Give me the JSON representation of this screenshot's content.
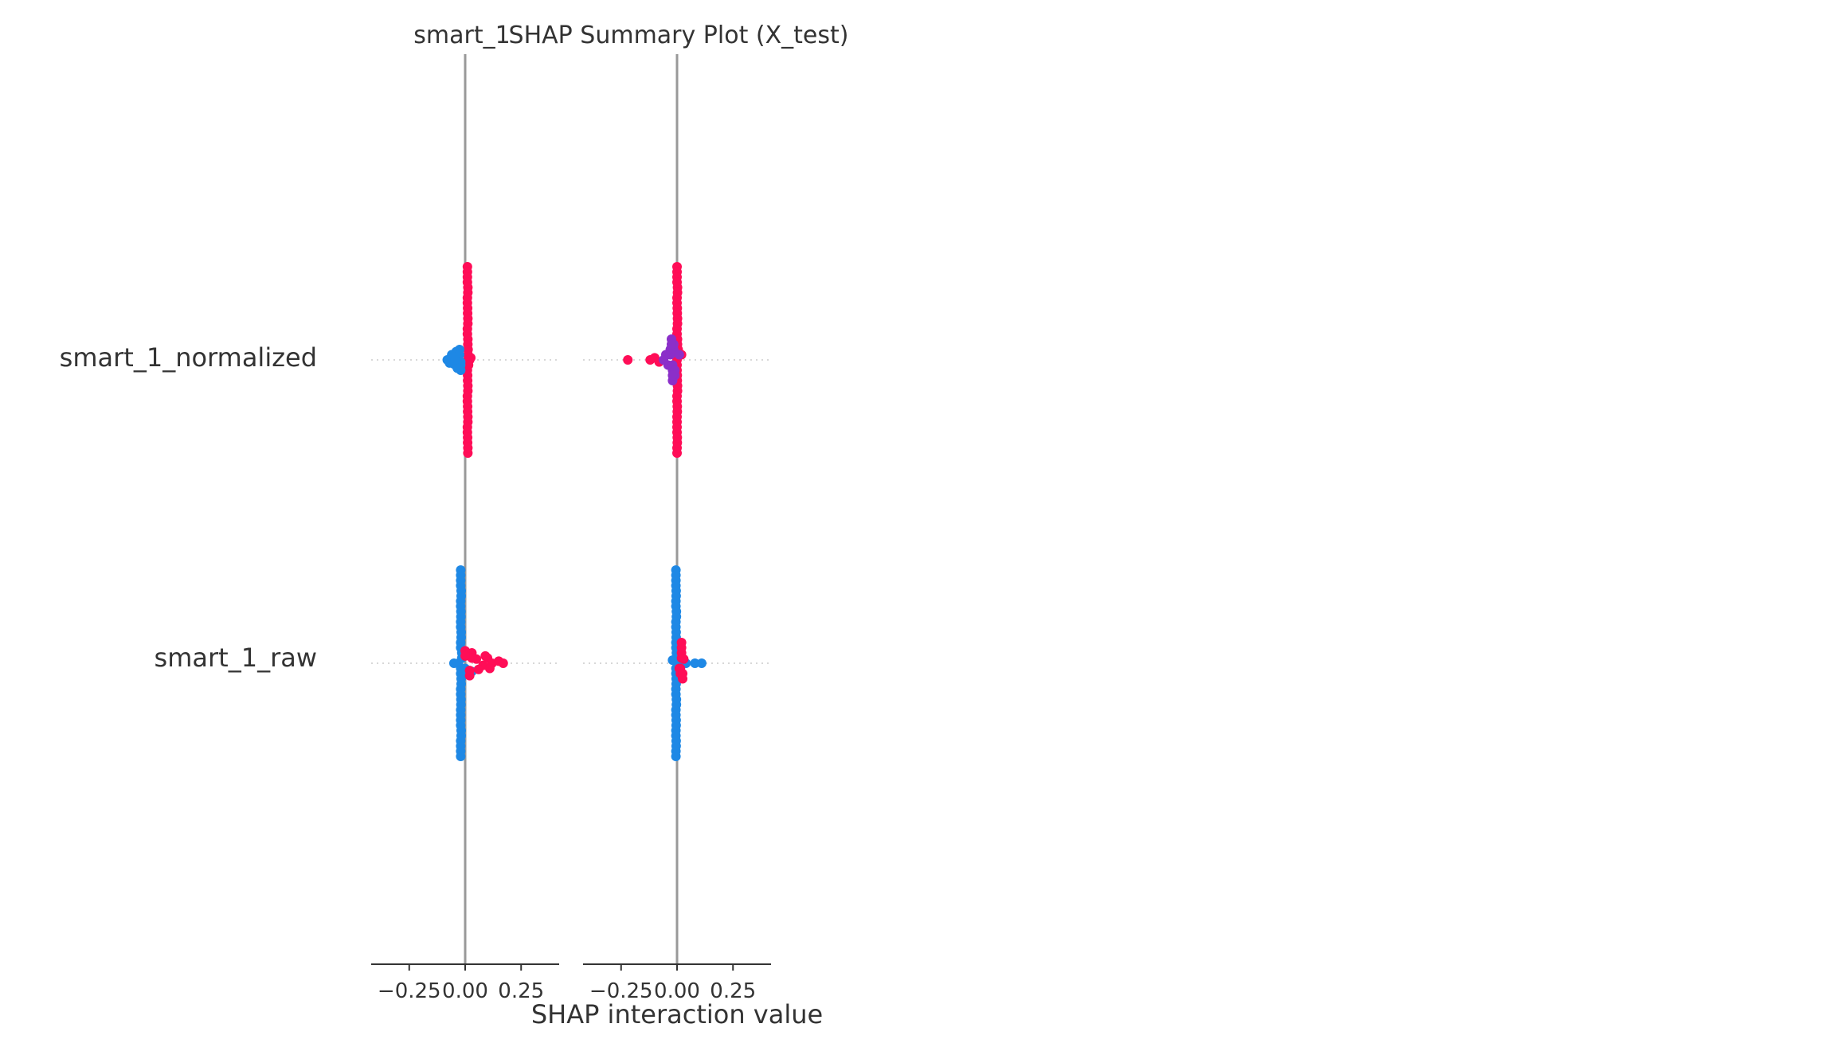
{
  "chart_data": {
    "type": "scatter",
    "title_left": "smart_1",
    "title_main": "SHAP Summary Plot (X_test)",
    "xlabel": "SHAP interaction value",
    "features": [
      "smart_1_normalized",
      "smart_1_raw"
    ],
    "panels": [
      {
        "name": "smart_1",
        "xlim": [
          -0.42,
          0.42
        ],
        "xticks": [
          -0.25,
          0.0,
          0.25
        ]
      },
      {
        "name": "smart_1_right",
        "xlim": [
          -0.42,
          0.42
        ],
        "xticks": [
          -0.25,
          0.0,
          0.25
        ]
      }
    ],
    "tick_labels": [
      "−0.25",
      "0.00",
      "0.25"
    ],
    "colors": {
      "high": "#ff0d57",
      "low": "#1e88e5",
      "axis": "#999999",
      "text": "#333333"
    },
    "clusters": [
      {
        "panel": 0,
        "feature": 0,
        "color": "high",
        "points": [
          [
            0.01,
            0.9
          ],
          [
            0.01,
            0.8
          ],
          [
            0.012,
            0.7
          ],
          [
            0.01,
            0.6
          ],
          [
            0.011,
            0.5
          ],
          [
            0.012,
            0.4
          ],
          [
            0.01,
            0.3
          ],
          [
            0.012,
            0.2
          ],
          [
            0.013,
            0.1
          ],
          [
            0.012,
            0.0
          ],
          [
            0.01,
            -0.1
          ],
          [
            0.011,
            -0.2
          ],
          [
            0.012,
            -0.3
          ],
          [
            0.01,
            -0.4
          ],
          [
            0.011,
            -0.5
          ],
          [
            0.012,
            -0.6
          ],
          [
            0.01,
            -0.7
          ],
          [
            0.011,
            -0.8
          ],
          [
            0.012,
            -0.9
          ],
          [
            0.02,
            0.0
          ],
          [
            0.025,
            0.02
          ],
          [
            0.015,
            -0.05
          ]
        ]
      },
      {
        "panel": 0,
        "feature": 0,
        "color": "low",
        "points": [
          [
            -0.08,
            0.0
          ],
          [
            -0.06,
            0.05
          ],
          [
            -0.05,
            -0.04
          ],
          [
            -0.04,
            0.08
          ],
          [
            -0.035,
            -0.08
          ],
          [
            -0.03,
            0.02
          ],
          [
            -0.02,
            -0.02
          ],
          [
            -0.07,
            -0.03
          ],
          [
            -0.05,
            0.03
          ],
          [
            -0.025,
            0.1
          ],
          [
            -0.02,
            -0.1
          ],
          [
            -0.045,
            0.0
          ]
        ]
      },
      {
        "panel": 0,
        "feature": 1,
        "color": "low",
        "points": [
          [
            -0.02,
            0.9
          ],
          [
            -0.02,
            0.8
          ],
          [
            -0.018,
            0.7
          ],
          [
            -0.02,
            0.6
          ],
          [
            -0.019,
            0.5
          ],
          [
            -0.02,
            0.4
          ],
          [
            -0.018,
            0.3
          ],
          [
            -0.02,
            0.2
          ],
          [
            -0.015,
            0.1
          ],
          [
            -0.03,
            0.0
          ],
          [
            -0.05,
            0.0
          ],
          [
            -0.02,
            -0.1
          ],
          [
            -0.018,
            -0.2
          ],
          [
            -0.02,
            -0.3
          ],
          [
            -0.019,
            -0.4
          ],
          [
            -0.02,
            -0.5
          ],
          [
            -0.02,
            -0.6
          ],
          [
            -0.018,
            -0.7
          ],
          [
            -0.02,
            -0.8
          ],
          [
            -0.02,
            -0.9
          ],
          [
            0.01,
            0.08
          ],
          [
            0.0,
            -0.05
          ],
          [
            0.03,
            -0.08
          ]
        ]
      },
      {
        "panel": 0,
        "feature": 1,
        "color": "high",
        "points": [
          [
            0.05,
            0.04
          ],
          [
            0.08,
            -0.02
          ],
          [
            0.1,
            0.05
          ],
          [
            0.12,
            0.0
          ],
          [
            0.15,
            0.02
          ],
          [
            0.17,
            0.0
          ],
          [
            0.06,
            -0.06
          ],
          [
            0.09,
            0.07
          ],
          [
            0.03,
            0.1
          ],
          [
            0.02,
            -0.12
          ],
          [
            0.11,
            -0.05
          ],
          [
            0.0,
            0.12
          ]
        ]
      },
      {
        "panel": 1,
        "feature": 0,
        "color": "high",
        "points": [
          [
            0.0,
            0.9
          ],
          [
            0.0,
            0.8
          ],
          [
            0.002,
            0.7
          ],
          [
            0.0,
            0.6
          ],
          [
            0.001,
            0.5
          ],
          [
            0.002,
            0.4
          ],
          [
            0.0,
            0.3
          ],
          [
            0.002,
            0.2
          ],
          [
            0.005,
            0.1
          ],
          [
            0.0,
            0.0
          ],
          [
            0.0,
            -0.1
          ],
          [
            0.001,
            -0.2
          ],
          [
            0.002,
            -0.3
          ],
          [
            0.0,
            -0.4
          ],
          [
            0.001,
            -0.5
          ],
          [
            0.0,
            -0.6
          ],
          [
            0.0,
            -0.7
          ],
          [
            0.001,
            -0.8
          ],
          [
            0.0,
            -0.9
          ],
          [
            -0.22,
            0.0
          ],
          [
            -0.12,
            0.0
          ],
          [
            -0.1,
            0.02
          ],
          [
            -0.08,
            -0.02
          ],
          [
            0.02,
            0.05
          ]
        ]
      },
      {
        "panel": 1,
        "feature": 0,
        "color": "mid",
        "points": [
          [
            -0.05,
            0.05
          ],
          [
            -0.04,
            -0.05
          ],
          [
            -0.03,
            0.1
          ],
          [
            -0.02,
            -0.1
          ],
          [
            -0.06,
            0.0
          ],
          [
            -0.015,
            0.15
          ],
          [
            -0.01,
            -0.15
          ],
          [
            -0.025,
            0.2
          ],
          [
            -0.02,
            -0.2
          ],
          [
            0.01,
            0.05
          ]
        ]
      },
      {
        "panel": 1,
        "feature": 1,
        "color": "low",
        "points": [
          [
            -0.005,
            0.9
          ],
          [
            -0.005,
            0.8
          ],
          [
            -0.004,
            0.7
          ],
          [
            -0.005,
            0.6
          ],
          [
            -0.003,
            0.5
          ],
          [
            -0.005,
            0.4
          ],
          [
            -0.004,
            0.3
          ],
          [
            -0.005,
            0.2
          ],
          [
            -0.003,
            0.1
          ],
          [
            0.0,
            0.0
          ],
          [
            0.04,
            0.0
          ],
          [
            0.08,
            0.0
          ],
          [
            0.11,
            0.0
          ],
          [
            -0.005,
            -0.1
          ],
          [
            -0.004,
            -0.2
          ],
          [
            -0.005,
            -0.3
          ],
          [
            -0.003,
            -0.4
          ],
          [
            -0.005,
            -0.5
          ],
          [
            -0.004,
            -0.6
          ],
          [
            -0.005,
            -0.7
          ],
          [
            -0.004,
            -0.8
          ],
          [
            -0.005,
            -0.9
          ],
          [
            -0.02,
            0.03
          ]
        ]
      },
      {
        "panel": 1,
        "feature": 1,
        "color": "high",
        "points": [
          [
            0.02,
            0.1
          ],
          [
            0.015,
            -0.1
          ],
          [
            0.02,
            0.2
          ],
          [
            0.01,
            -0.05
          ],
          [
            0.03,
            0.04
          ],
          [
            0.025,
            -0.15
          ]
        ]
      }
    ]
  }
}
